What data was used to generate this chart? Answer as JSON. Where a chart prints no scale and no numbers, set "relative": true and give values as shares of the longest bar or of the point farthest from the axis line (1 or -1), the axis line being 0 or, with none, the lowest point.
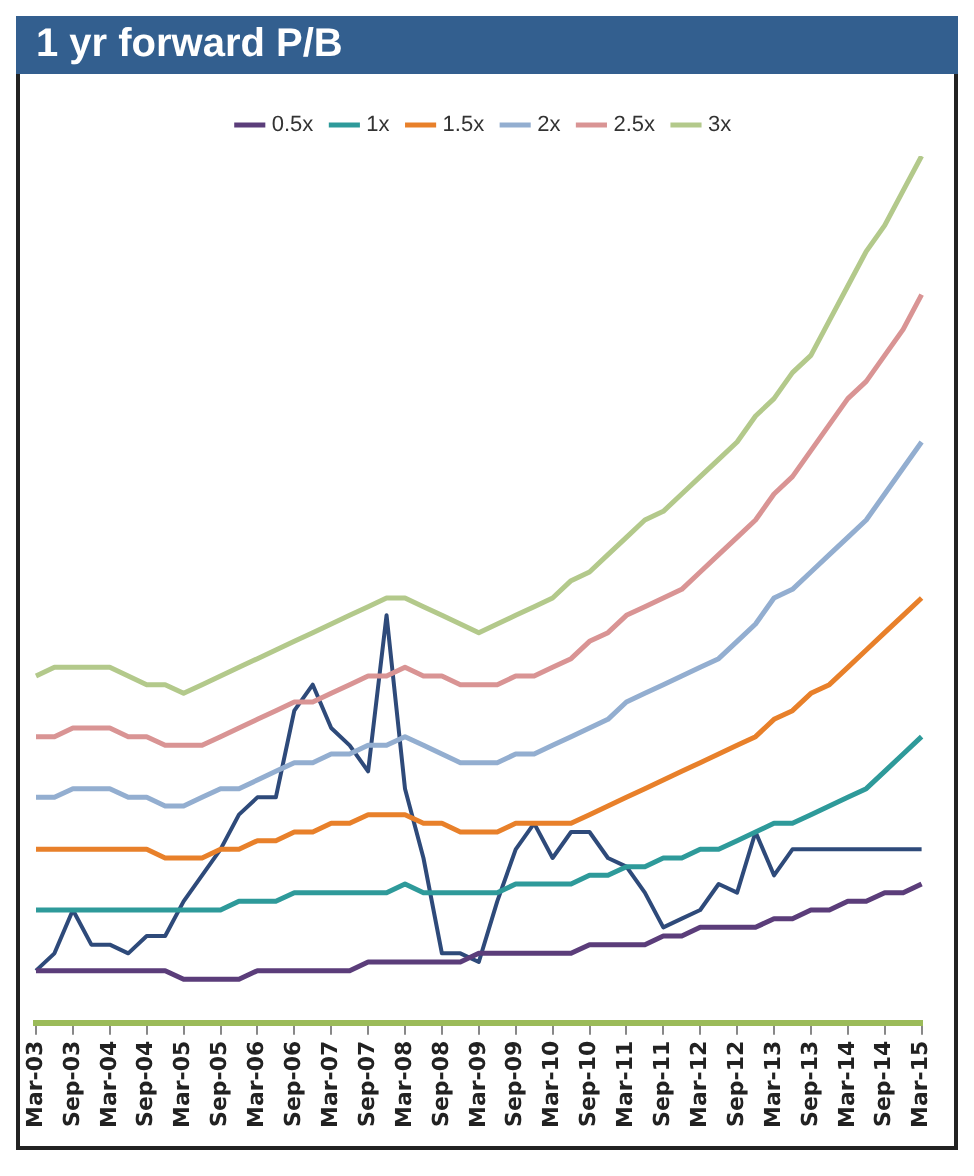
{
  "chart_data": {
    "type": "line",
    "title": "1 yr forward P/B",
    "relative": true,
    "legend": "top",
    "grid": false,
    "marker": "none",
    "line_style": "solid",
    "categories": [
      "Mar-03",
      null,
      "Sep-03",
      null,
      "Mar-04",
      null,
      "Sep-04",
      null,
      "Mar-05",
      null,
      "Sep-05",
      null,
      "Mar-06",
      null,
      "Sep-06",
      null,
      "Mar-07",
      null,
      "Sep-07",
      null,
      "Mar-08",
      null,
      "Sep-08",
      null,
      "Mar-09",
      null,
      "Sep-09",
      null,
      "Mar-10",
      null,
      "Sep-10",
      null,
      "Mar-11",
      null,
      "Sep-11",
      null,
      "Mar-12",
      null,
      "Sep-12",
      null,
      "Mar-13",
      null,
      "Sep-13",
      null,
      "Mar-14",
      null,
      "Sep-14",
      null,
      "Mar-15"
    ],
    "series": [
      {
        "name": "0.5x",
        "color": "#5b3d7a",
        "values": [
          0.06,
          0.06,
          0.06,
          0.06,
          0.06,
          0.06,
          0.06,
          0.06,
          0.05,
          0.05,
          0.05,
          0.05,
          0.06,
          0.06,
          0.06,
          0.06,
          0.06,
          0.06,
          0.07,
          0.07,
          0.07,
          0.07,
          0.07,
          0.07,
          0.08,
          0.08,
          0.08,
          0.08,
          0.08,
          0.08,
          0.09,
          0.09,
          0.09,
          0.09,
          0.1,
          0.1,
          0.11,
          0.11,
          0.11,
          0.11,
          0.12,
          0.12,
          0.13,
          0.13,
          0.14,
          0.14,
          0.15,
          0.15,
          0.16
        ]
      },
      {
        "name": "1x",
        "color": "#2e9a9a",
        "values": [
          0.13,
          0.13,
          0.13,
          0.13,
          0.13,
          0.13,
          0.13,
          0.13,
          0.13,
          0.13,
          0.13,
          0.14,
          0.14,
          0.14,
          0.15,
          0.15,
          0.15,
          0.15,
          0.15,
          0.15,
          0.16,
          0.15,
          0.15,
          0.15,
          0.15,
          0.15,
          0.16,
          0.16,
          0.16,
          0.16,
          0.17,
          0.17,
          0.18,
          0.18,
          0.19,
          0.19,
          0.2,
          0.2,
          0.21,
          0.22,
          0.23,
          0.23,
          0.24,
          0.25,
          0.26,
          0.27,
          0.29,
          0.31,
          0.33
        ]
      },
      {
        "name": "1.5x",
        "color": "#e8802a",
        "values": [
          0.2,
          0.2,
          0.2,
          0.2,
          0.2,
          0.2,
          0.2,
          0.19,
          0.19,
          0.19,
          0.2,
          0.2,
          0.21,
          0.21,
          0.22,
          0.22,
          0.23,
          0.23,
          0.24,
          0.24,
          0.24,
          0.23,
          0.23,
          0.22,
          0.22,
          0.22,
          0.23,
          0.23,
          0.23,
          0.23,
          0.24,
          0.25,
          0.26,
          0.27,
          0.28,
          0.29,
          0.3,
          0.31,
          0.32,
          0.33,
          0.35,
          0.36,
          0.38,
          0.39,
          0.41,
          0.43,
          0.45,
          0.47,
          0.49
        ]
      },
      {
        "name": "2x",
        "color": "#93aed0",
        "values": [
          0.26,
          0.26,
          0.27,
          0.27,
          0.27,
          0.26,
          0.26,
          0.25,
          0.25,
          0.26,
          0.27,
          0.27,
          0.28,
          0.29,
          0.3,
          0.3,
          0.31,
          0.31,
          0.32,
          0.32,
          0.33,
          0.32,
          0.31,
          0.3,
          0.3,
          0.3,
          0.31,
          0.31,
          0.32,
          0.33,
          0.34,
          0.35,
          0.37,
          0.38,
          0.39,
          0.4,
          0.41,
          0.42,
          0.44,
          0.46,
          0.49,
          0.5,
          0.52,
          0.54,
          0.56,
          0.58,
          0.61,
          0.64,
          0.67
        ]
      },
      {
        "name": "2.5x",
        "color": "#d99494",
        "values": [
          0.33,
          0.33,
          0.34,
          0.34,
          0.34,
          0.33,
          0.33,
          0.32,
          0.32,
          0.32,
          0.33,
          0.34,
          0.35,
          0.36,
          0.37,
          0.37,
          0.38,
          0.39,
          0.4,
          0.4,
          0.41,
          0.4,
          0.4,
          0.39,
          0.39,
          0.39,
          0.4,
          0.4,
          0.41,
          0.42,
          0.44,
          0.45,
          0.47,
          0.48,
          0.49,
          0.5,
          0.52,
          0.54,
          0.56,
          0.58,
          0.61,
          0.63,
          0.66,
          0.69,
          0.72,
          0.74,
          0.77,
          0.8,
          0.84
        ]
      },
      {
        "name": "3x",
        "color": "#b3c98b",
        "values": [
          0.4,
          0.41,
          0.41,
          0.41,
          0.41,
          0.4,
          0.39,
          0.39,
          0.38,
          0.39,
          0.4,
          0.41,
          0.42,
          0.43,
          0.44,
          0.45,
          0.46,
          0.47,
          0.48,
          0.49,
          0.49,
          0.48,
          0.47,
          0.46,
          0.45,
          0.46,
          0.47,
          0.48,
          0.49,
          0.51,
          0.52,
          0.54,
          0.56,
          0.58,
          0.59,
          0.61,
          0.63,
          0.65,
          0.67,
          0.7,
          0.72,
          0.75,
          0.77,
          0.81,
          0.85,
          0.89,
          0.92,
          0.96,
          1.0
        ]
      },
      {
        "color": "#2e4a7a",
        "values": [
          0.06,
          0.08,
          0.13,
          0.09,
          0.09,
          0.08,
          0.1,
          0.1,
          0.14,
          0.17,
          0.2,
          0.24,
          0.26,
          0.26,
          0.36,
          0.39,
          0.34,
          0.32,
          0.29,
          0.47,
          0.27,
          0.19,
          0.08,
          0.08,
          0.07,
          0.14,
          0.2,
          0.23,
          0.19,
          0.22,
          0.22,
          0.19,
          0.18,
          0.15,
          0.11,
          0.12,
          0.13,
          0.16,
          0.15,
          0.22,
          0.17,
          0.2,
          0.2,
          0.2,
          0.2,
          0.2,
          0.2,
          0.2,
          0.2
        ]
      }
    ]
  }
}
